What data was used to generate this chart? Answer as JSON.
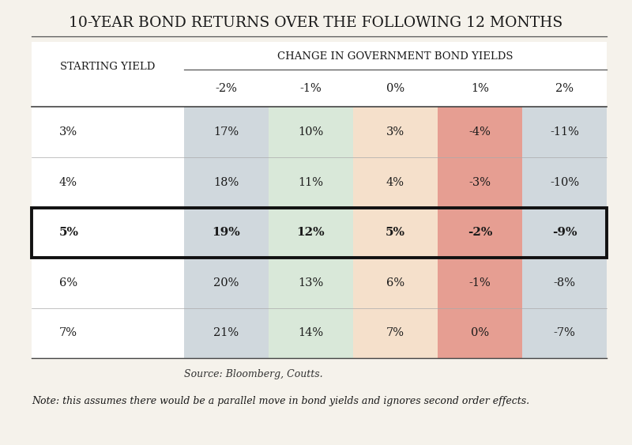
{
  "title": "10-YEAR BOND RETURNS OVER THE FOLLOWING 12 MONTHS",
  "col_header_main": "CHANGE IN GOVERNMENT BOND YIELDS",
  "row_header_main": "STARTING YIELD",
  "col_labels": [
    "-2%",
    "-1%",
    "0%",
    "1%",
    "2%"
  ],
  "row_labels": [
    "3%",
    "4%",
    "5%",
    "6%",
    "7%"
  ],
  "values": [
    [
      "17%",
      "10%",
      "3%",
      "-4%",
      "-11%"
    ],
    [
      "18%",
      "11%",
      "4%",
      "-3%",
      "-10%"
    ],
    [
      "19%",
      "12%",
      "5%",
      "-2%",
      "-9%"
    ],
    [
      "20%",
      "13%",
      "6%",
      "-1%",
      "-8%"
    ],
    [
      "21%",
      "14%",
      "7%",
      "0%",
      "-7%"
    ]
  ],
  "highlight_row": 2,
  "col_colors": [
    "#b8c4cc",
    "#c5dcc5",
    "#f0d0b0",
    "#d96b58",
    "#b8c4cc"
  ],
  "background_color": "#ffffff",
  "outer_bg": "#f5f2eb",
  "source_text": "Source: Bloomberg, Coutts.",
  "note_text": "Note: this assumes there would be a parallel move in bond yields and ignores second order effects.",
  "title_fontsize": 13.5,
  "header_fontsize": 9.5,
  "cell_fontsize": 10.5,
  "note_fontsize": 9
}
